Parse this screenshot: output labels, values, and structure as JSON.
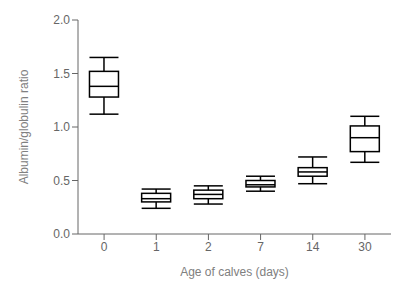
{
  "chart_data": {
    "type": "box",
    "xlabel": "Age of calves (days)",
    "ylabel": "Albumin/globulin ratio",
    "categories": [
      "0",
      "1",
      "2",
      "7",
      "14",
      "30"
    ],
    "values": [
      {
        "whisker_low": 1.12,
        "q1": 1.28,
        "median": 1.38,
        "q3": 1.52,
        "whisker_high": 1.65
      },
      {
        "whisker_low": 0.24,
        "q1": 0.3,
        "median": 0.33,
        "q3": 0.38,
        "whisker_high": 0.42
      },
      {
        "whisker_low": 0.28,
        "q1": 0.33,
        "median": 0.37,
        "q3": 0.41,
        "whisker_high": 0.45
      },
      {
        "whisker_low": 0.4,
        "q1": 0.44,
        "median": 0.46,
        "q3": 0.5,
        "whisker_high": 0.54
      },
      {
        "whisker_low": 0.47,
        "q1": 0.54,
        "median": 0.58,
        "q3": 0.62,
        "whisker_high": 0.72
      },
      {
        "whisker_low": 0.67,
        "q1": 0.77,
        "median": 0.9,
        "q3": 1.01,
        "whisker_high": 1.1
      }
    ],
    "ylim": [
      0,
      2
    ],
    "yticks": [
      {
        "value": 0,
        "label": "0.0"
      },
      0.5,
      {
        "value": 1,
        "label": "1.0"
      },
      1.5,
      {
        "value": 2,
        "label": "2.0"
      }
    ],
    "color": "black",
    "grid": false
  }
}
